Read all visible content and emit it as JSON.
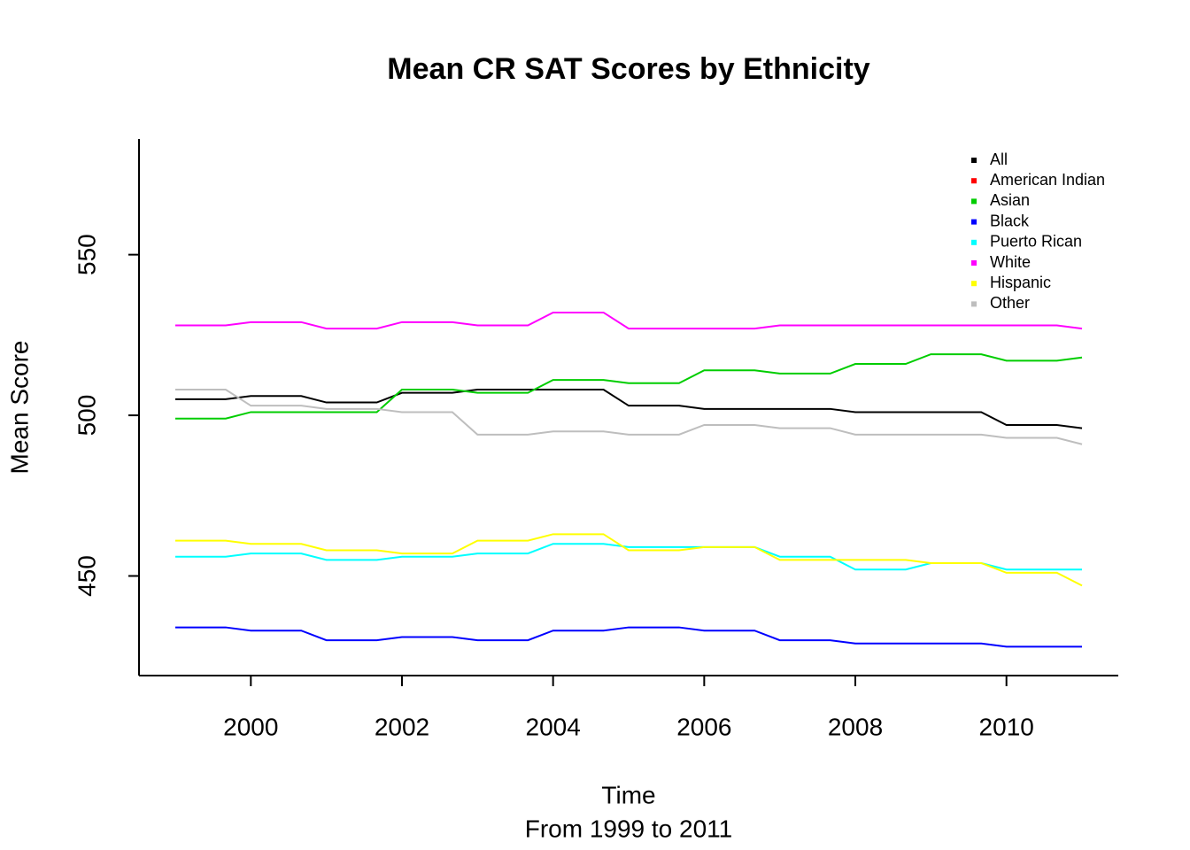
{
  "chart_data": {
    "type": "line",
    "title": "Mean CR SAT Scores by Ethnicity",
    "x_label": "Time",
    "subtitle": "From 1999 to 2011",
    "y_label": "Mean Score",
    "x": [
      1999,
      1999.667,
      2000,
      2000.667,
      2001,
      2001.667,
      2002,
      2002.667,
      2003,
      2003.667,
      2004,
      2004.667,
      2005,
      2005.667,
      2006,
      2006.667,
      2007,
      2007.667,
      2008,
      2008.667,
      2009,
      2009.667,
      2010,
      2010.667,
      2011
    ],
    "xlim": [
      1998.52,
      2011.48
    ],
    "xticks": [
      2000,
      2002,
      2004,
      2006,
      2008,
      2010
    ],
    "ylim": [
      419,
      586
    ],
    "yticks": [
      450,
      500,
      550
    ],
    "legend": "topright",
    "series": [
      {
        "name": "All",
        "color": "#000000",
        "values": [
          505,
          505,
          506,
          506,
          504,
          504,
          507,
          507,
          508,
          508,
          508,
          508,
          503,
          503,
          502,
          502,
          502,
          502,
          501,
          501,
          501,
          501,
          497,
          497,
          496
        ]
      },
      {
        "name": "American Indian",
        "color": "#ff0000",
        "values": [
          null,
          null,
          null,
          null,
          null,
          null,
          null,
          null,
          null,
          null,
          null,
          null,
          null,
          null,
          null,
          null,
          null,
          null,
          null,
          null,
          null,
          null,
          null,
          null,
          null
        ]
      },
      {
        "name": "Asian",
        "color": "#00cd00",
        "values": [
          499,
          499,
          501,
          501,
          501,
          501,
          508,
          508,
          507,
          507,
          511,
          511,
          510,
          510,
          514,
          514,
          513,
          513,
          516,
          516,
          519,
          519,
          517,
          517,
          518
        ]
      },
      {
        "name": "Black",
        "color": "#0000ff",
        "values": [
          434,
          434,
          433,
          433,
          430,
          430,
          431,
          431,
          430,
          430,
          433,
          433,
          434,
          434,
          433,
          433,
          430,
          430,
          429,
          429,
          429,
          429,
          428,
          428,
          428
        ]
      },
      {
        "name": "Puerto Rican",
        "color": "#00ffff",
        "values": [
          456,
          456,
          457,
          457,
          455,
          455,
          456,
          456,
          457,
          457,
          460,
          460,
          459,
          459,
          459,
          459,
          456,
          456,
          452,
          452,
          454,
          454,
          452,
          452,
          452
        ]
      },
      {
        "name": "White",
        "color": "#ff00ff",
        "values": [
          528,
          528,
          529,
          529,
          527,
          527,
          529,
          529,
          528,
          528,
          532,
          532,
          527,
          527,
          527,
          527,
          528,
          528,
          528,
          528,
          528,
          528,
          528,
          528,
          527
        ]
      },
      {
        "name": "Hispanic",
        "color": "#ffff00",
        "values": [
          461,
          461,
          460,
          460,
          458,
          458,
          457,
          457,
          461,
          461,
          463,
          463,
          458,
          458,
          459,
          459,
          455,
          455,
          455,
          455,
          454,
          454,
          451,
          451,
          447
        ]
      },
      {
        "name": "Other",
        "color": "#bebebe",
        "values": [
          508,
          508,
          503,
          503,
          502,
          502,
          501,
          501,
          494,
          494,
          495,
          495,
          494,
          494,
          497,
          497,
          496,
          496,
          494,
          494,
          494,
          494,
          493,
          493,
          491
        ]
      }
    ]
  }
}
